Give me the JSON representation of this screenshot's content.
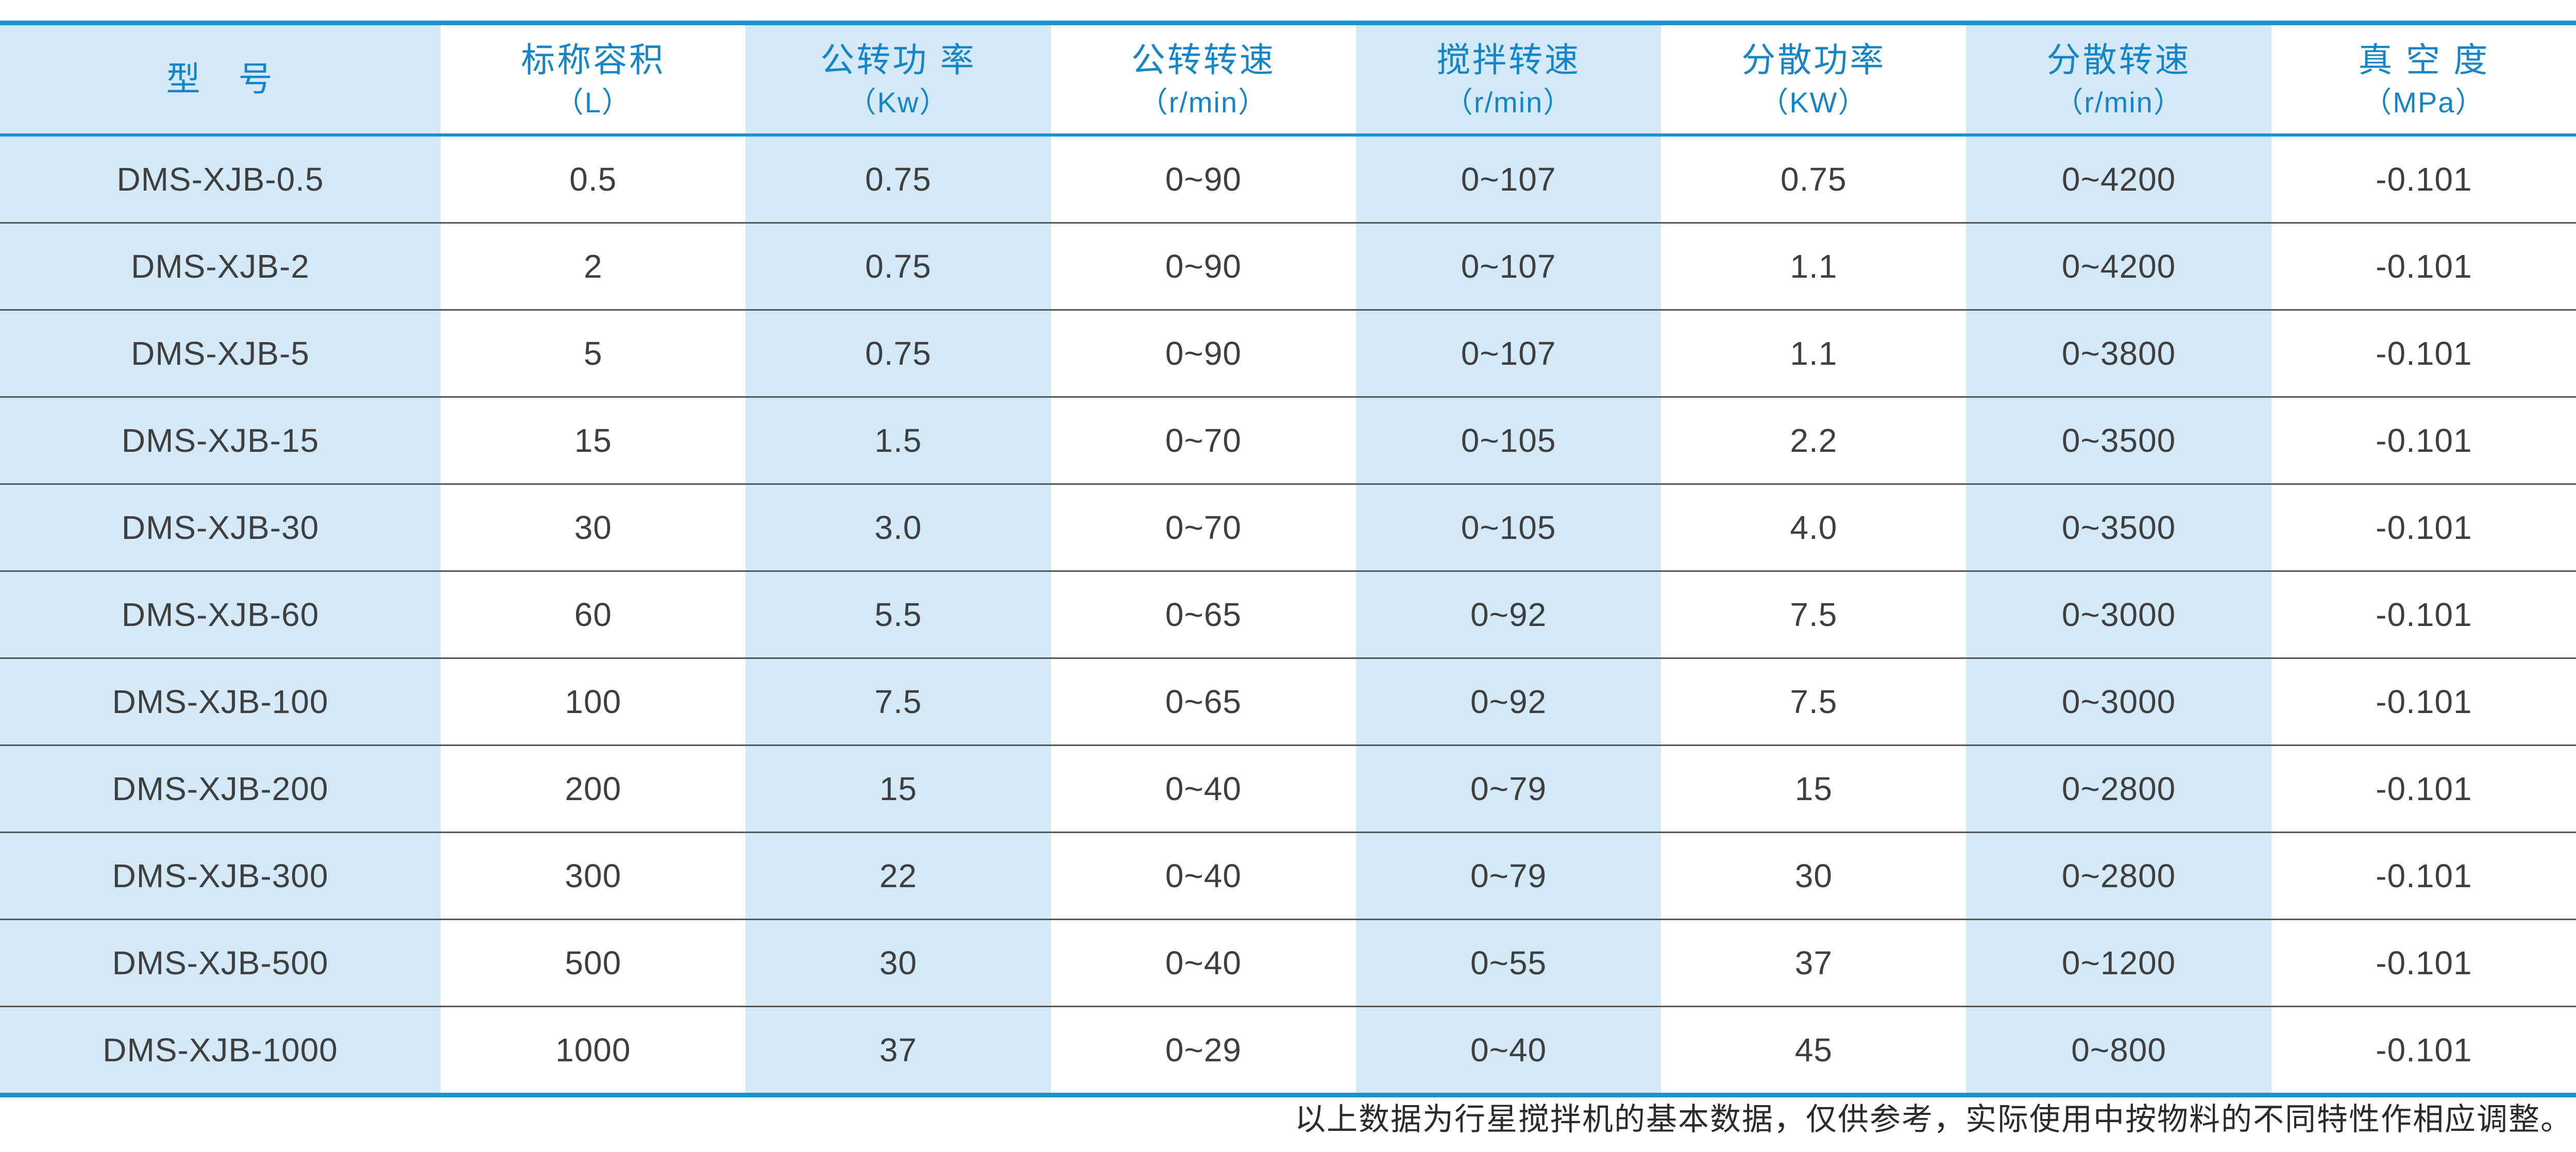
{
  "table": {
    "headers": [
      {
        "title": "型　号",
        "unit": ""
      },
      {
        "title": "标称容积",
        "unit": "（L）"
      },
      {
        "title": "公转功 率",
        "unit": "（Kw）"
      },
      {
        "title": "公转转速",
        "unit": "（r/min）"
      },
      {
        "title": "搅拌转速",
        "unit": "（r/min）"
      },
      {
        "title": "分散功率",
        "unit": "（KW）"
      },
      {
        "title": "分散转速",
        "unit": "（r/min）"
      },
      {
        "title": "真 空 度",
        "unit": "（MPa）"
      }
    ],
    "rows": [
      [
        "DMS-XJB-0.5",
        "0.5",
        "0.75",
        "0~90",
        "0~107",
        "0.75",
        "0~4200",
        "-0.101"
      ],
      [
        "DMS-XJB-2",
        "2",
        "0.75",
        "0~90",
        "0~107",
        "1.1",
        "0~4200",
        "-0.101"
      ],
      [
        "DMS-XJB-5",
        "5",
        "0.75",
        "0~90",
        "0~107",
        "1.1",
        "0~3800",
        "-0.101"
      ],
      [
        "DMS-XJB-15",
        "15",
        "1.5",
        "0~70",
        "0~105",
        "2.2",
        "0~3500",
        "-0.101"
      ],
      [
        "DMS-XJB-30",
        "30",
        "3.0",
        "0~70",
        "0~105",
        "4.0",
        "0~3500",
        "-0.101"
      ],
      [
        "DMS-XJB-60",
        "60",
        "5.5",
        "0~65",
        "0~92",
        "7.5",
        "0~3000",
        "-0.101"
      ],
      [
        "DMS-XJB-100",
        "100",
        "7.5",
        "0~65",
        "0~92",
        "7.5",
        "0~3000",
        "-0.101"
      ],
      [
        "DMS-XJB-200",
        "200",
        "15",
        "0~40",
        "0~79",
        "15",
        "0~2800",
        "-0.101"
      ],
      [
        "DMS-XJB-300",
        "300",
        "22",
        "0~40",
        "0~79",
        "30",
        "0~2800",
        "-0.101"
      ],
      [
        "DMS-XJB-500",
        "500",
        "30",
        "0~40",
        "0~55",
        "37",
        "0~1200",
        "-0.101"
      ],
      [
        "DMS-XJB-1000",
        "1000",
        "37",
        "0~29",
        "0~40",
        "45",
        "0~800",
        "-0.101"
      ]
    ]
  },
  "footer": {
    "note": "以上数据为行星搅拌机的基本数据，仅供参考，实际使用中按物料的不同特性作相应调整。"
  },
  "colors": {
    "accent_blue": "#1b91d0",
    "header_text_blue": "#1585c8",
    "column_light_blue": "#d4e9f8",
    "data_text": "#3f3f3f",
    "row_separator": "#565656",
    "footer_text": "#2b2b2b"
  }
}
